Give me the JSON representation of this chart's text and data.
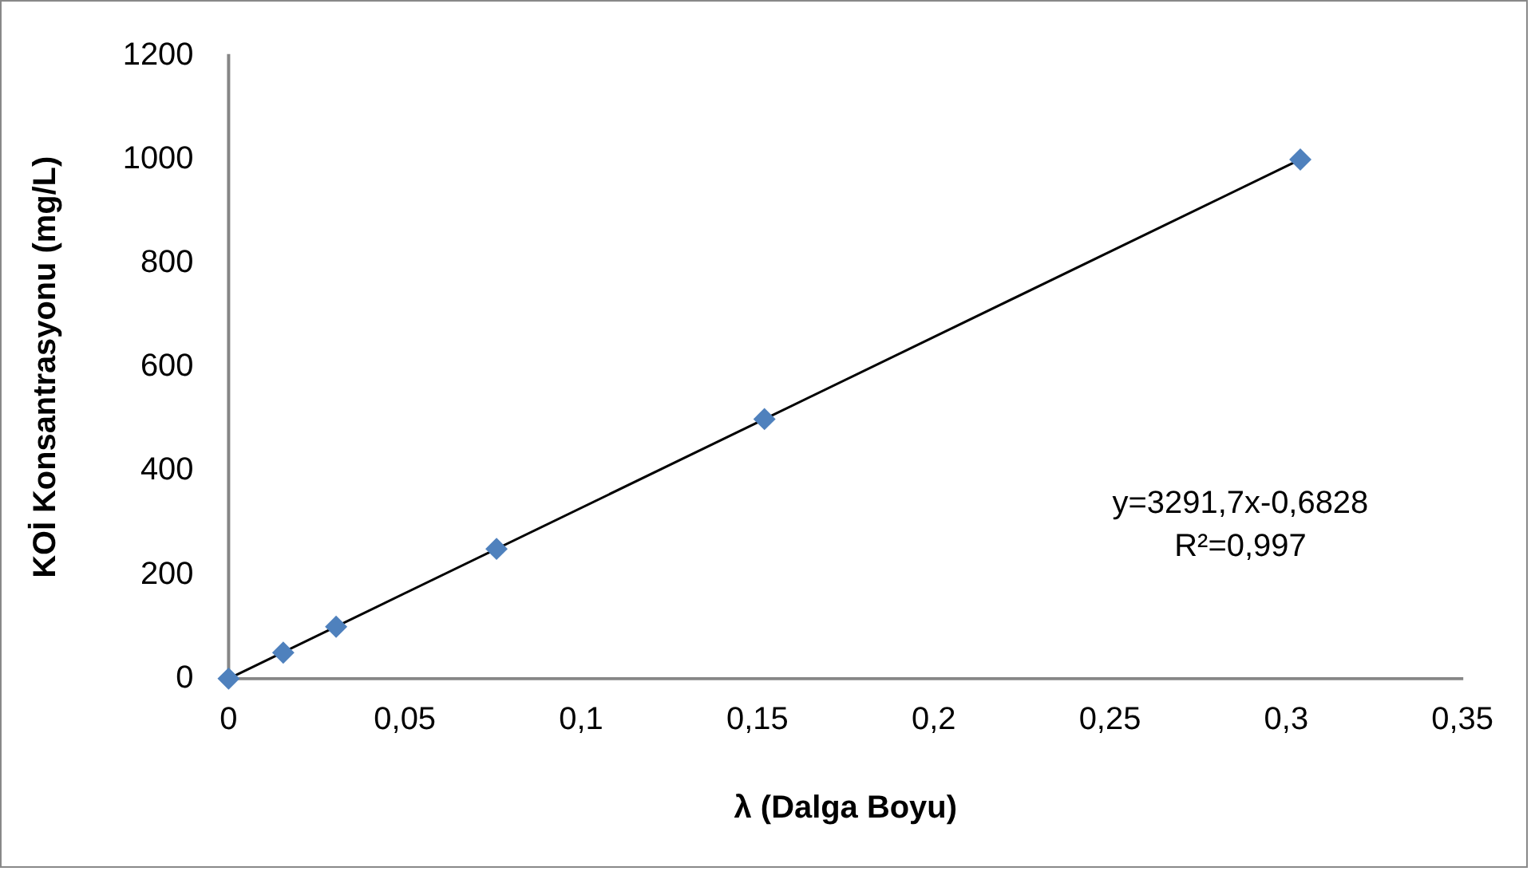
{
  "chart_data": {
    "type": "scatter",
    "xlabel": "λ (Dalga Boyu)",
    "ylabel": "KOİ Konsantrasyonu (mg/L)",
    "x": [
      0,
      0.0155,
      0.0305,
      0.076,
      0.152,
      0.304
    ],
    "series": [
      {
        "color": "#4f81bd",
        "marker": "diamond",
        "values": [
          0,
          50,
          100,
          250,
          500,
          1000
        ]
      },
      {
        "type": "line",
        "color": "#000000",
        "marker": "none",
        "x": [
          0,
          0.304
        ],
        "values": [
          0,
          1000
        ]
      }
    ],
    "xlim": [
      0,
      0.35
    ],
    "xticks": [
      0,
      {
        "value": 0.05,
        "label": "0,05"
      },
      {
        "value": 0.1,
        "label": "0,1"
      },
      {
        "value": 0.15,
        "label": "0,15"
      },
      {
        "value": 0.2,
        "label": "0,2"
      },
      {
        "value": 0.25,
        "label": "0,25"
      },
      {
        "value": 0.3,
        "label": "0,3"
      },
      {
        "value": 0.35,
        "label": "0,35"
      }
    ],
    "ylim": [
      0,
      1200
    ],
    "yticks": [
      0,
      200,
      400,
      600,
      800,
      1000,
      1200
    ],
    "annotations": [
      "y=3291,7x-0,6828",
      "R²=0,997"
    ],
    "grid": false,
    "legend": false
  }
}
